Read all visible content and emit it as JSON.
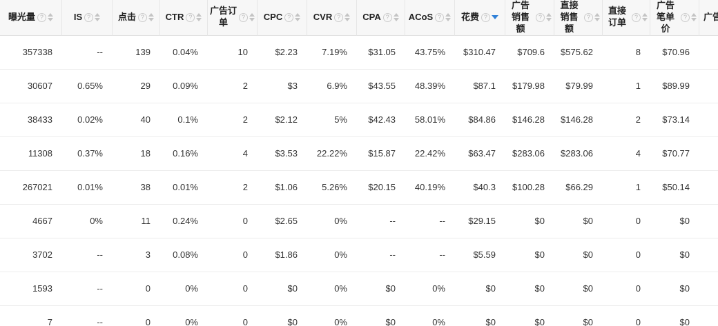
{
  "table": {
    "columns": [
      {
        "key": "impressions",
        "label": "曝光量",
        "help": true,
        "sorted": null
      },
      {
        "key": "is",
        "label": "IS",
        "help": true,
        "sorted": null
      },
      {
        "key": "clicks",
        "label": "点击",
        "help": true,
        "sorted": null
      },
      {
        "key": "ctr",
        "label": "CTR",
        "help": true,
        "sorted": null
      },
      {
        "key": "ad-orders",
        "label": "广告订单",
        "help": true,
        "sorted": null
      },
      {
        "key": "cpc",
        "label": "CPC",
        "help": true,
        "sorted": null
      },
      {
        "key": "cvr",
        "label": "CVR",
        "help": true,
        "sorted": null
      },
      {
        "key": "cpa",
        "label": "CPA",
        "help": true,
        "sorted": null
      },
      {
        "key": "acos",
        "label": "ACoS",
        "help": true,
        "sorted": null
      },
      {
        "key": "spend",
        "label": "花费",
        "help": true,
        "sorted": "desc"
      },
      {
        "key": "ad-sales",
        "label": "广告销售额",
        "help": true,
        "sorted": null
      },
      {
        "key": "direct-sales",
        "label": "直接销售额",
        "help": true,
        "sorted": null
      },
      {
        "key": "direct-orders",
        "label": "直接订单",
        "help": true,
        "sorted": null
      },
      {
        "key": "ad-aov",
        "label": "广告笔单价",
        "help": true,
        "sorted": null
      },
      {
        "key": "truncated",
        "label": "广告",
        "help": true,
        "sorted": null
      }
    ],
    "rows": [
      [
        "357338",
        "--",
        "139",
        "0.04%",
        "10",
        "$2.23",
        "7.19%",
        "$31.05",
        "43.75%",
        "$310.47",
        "$709.6",
        "$575.62",
        "8",
        "$70.96",
        ""
      ],
      [
        "30607",
        "0.65%",
        "29",
        "0.09%",
        "2",
        "$3",
        "6.9%",
        "$43.55",
        "48.39%",
        "$87.1",
        "$179.98",
        "$79.99",
        "1",
        "$89.99",
        ""
      ],
      [
        "38433",
        "0.02%",
        "40",
        "0.1%",
        "2",
        "$2.12",
        "5%",
        "$42.43",
        "58.01%",
        "$84.86",
        "$146.28",
        "$146.28",
        "2",
        "$73.14",
        ""
      ],
      [
        "11308",
        "0.37%",
        "18",
        "0.16%",
        "4",
        "$3.53",
        "22.22%",
        "$15.87",
        "22.42%",
        "$63.47",
        "$283.06",
        "$283.06",
        "4",
        "$70.77",
        ""
      ],
      [
        "267021",
        "0.01%",
        "38",
        "0.01%",
        "2",
        "$1.06",
        "5.26%",
        "$20.15",
        "40.19%",
        "$40.3",
        "$100.28",
        "$66.29",
        "1",
        "$50.14",
        ""
      ],
      [
        "4667",
        "0%",
        "11",
        "0.24%",
        "0",
        "$2.65",
        "0%",
        "--",
        "--",
        "$29.15",
        "$0",
        "$0",
        "0",
        "$0",
        ""
      ],
      [
        "3702",
        "--",
        "3",
        "0.08%",
        "0",
        "$1.86",
        "0%",
        "--",
        "--",
        "$5.59",
        "$0",
        "$0",
        "0",
        "$0",
        ""
      ],
      [
        "1593",
        "--",
        "0",
        "0%",
        "0",
        "$0",
        "0%",
        "$0",
        "0%",
        "$0",
        "$0",
        "$0",
        "0",
        "$0",
        ""
      ],
      [
        "7",
        "--",
        "0",
        "0%",
        "0",
        "$0",
        "0%",
        "$0",
        "0%",
        "$0",
        "$0",
        "$0",
        "0",
        "$0",
        ""
      ]
    ]
  },
  "icons": {
    "help_glyph": "?"
  },
  "colors": {
    "sort_active": "#2f80d8",
    "header_bg": "#f7f7f7",
    "border": "#e6e6e6",
    "text": "#333333",
    "icon_gray": "#c4c4c4"
  }
}
